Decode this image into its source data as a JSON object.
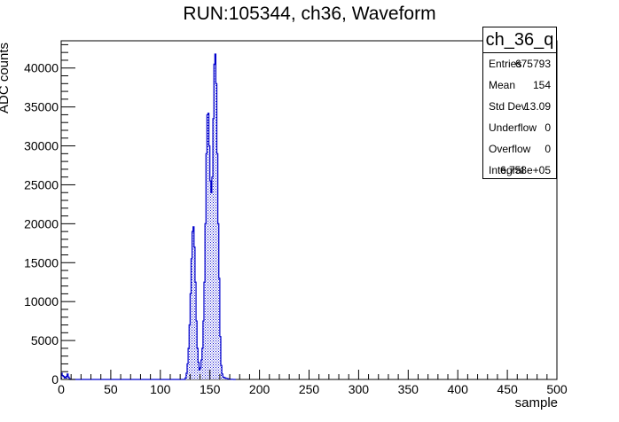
{
  "chart_data": {
    "type": "histogram",
    "title": "RUN:105344, ch36, Waveform",
    "xlabel": "sample",
    "ylabel": "ADC counts",
    "xlim": [
      0,
      500
    ],
    "ylim": [
      0,
      43500
    ],
    "x_ticks": [
      "0",
      "50",
      "100",
      "150",
      "200",
      "250",
      "300",
      "350",
      "400",
      "450",
      "500"
    ],
    "y_ticks": [
      "0",
      "5000",
      "10000",
      "15000",
      "20000",
      "25000",
      "30000",
      "35000",
      "40000"
    ],
    "series": [
      {
        "x": [
          0,
          1,
          2,
          3,
          4,
          5,
          6,
          7,
          8,
          125,
          126,
          127,
          128,
          129,
          130,
          131,
          132,
          133,
          134,
          135,
          136,
          137,
          138,
          139,
          140,
          141,
          142,
          143,
          144,
          145,
          146,
          147,
          148,
          149,
          150,
          151,
          152,
          153,
          154,
          155,
          156,
          157,
          158,
          159,
          160,
          161,
          162,
          163,
          164,
          165,
          166,
          167,
          168,
          169,
          170,
          171,
          172,
          173,
          174,
          175
        ],
        "values": [
          800,
          500,
          400,
          300,
          200,
          400,
          700,
          300,
          100,
          200,
          800,
          2000,
          4000,
          7000,
          11000,
          15500,
          19000,
          19600,
          17000,
          12500,
          7500,
          4000,
          2200,
          1200,
          1500,
          2500,
          4000,
          7500,
          12500,
          20000,
          29000,
          34000,
          34200,
          30000,
          25500,
          24000,
          26000,
          33500,
          40500,
          41800,
          38000,
          29000,
          20000,
          13000,
          5500,
          1800,
          700,
          300,
          250,
          200,
          150,
          120,
          80,
          50,
          30,
          20,
          10,
          5,
          2,
          0
        ]
      }
    ]
  },
  "stats": {
    "name": "ch_36_q",
    "rows": [
      {
        "key": "Entries",
        "value": "675793"
      },
      {
        "key": "Mean",
        "value": "154"
      },
      {
        "key": "Std Dev",
        "value": "13.09"
      },
      {
        "key": "Underflow",
        "value": "0"
      },
      {
        "key": "Overflow",
        "value": "0"
      },
      {
        "key": "Integral",
        "value": "6.758e+05"
      }
    ]
  },
  "colors": {
    "line": "#0000cc",
    "axis": "#000000"
  }
}
